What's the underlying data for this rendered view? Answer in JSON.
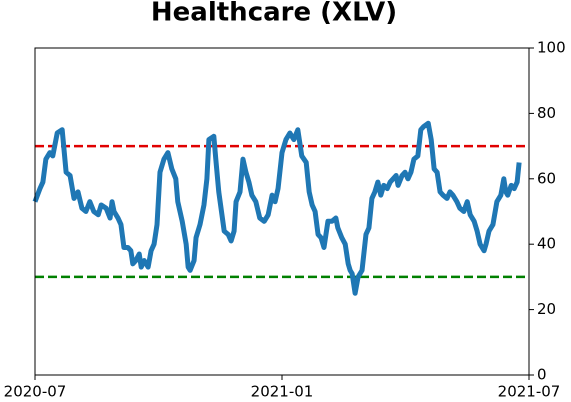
{
  "chart_data": {
    "type": "line",
    "title": "Healthcare (XLV)",
    "x": [
      2020.5,
      2020.51,
      2020.516,
      2020.522,
      2020.53,
      2020.536,
      2020.545,
      2020.555,
      2020.563,
      2020.571,
      2020.579,
      2020.587,
      2020.595,
      2020.603,
      2020.611,
      2020.619,
      2020.628,
      2020.634,
      2020.644,
      2020.652,
      2020.656,
      2020.66,
      2020.668,
      2020.674,
      2020.68,
      2020.688,
      2020.694,
      2020.698,
      2020.704,
      2020.711,
      2020.715,
      2020.721,
      2020.729,
      2020.735,
      2020.741,
      2020.747,
      2020.753,
      2020.761,
      2020.769,
      2020.777,
      2020.785,
      2020.789,
      2020.798,
      2020.806,
      2020.81,
      2020.814,
      2020.822,
      2020.826,
      2020.834,
      2020.842,
      2020.848,
      2020.852,
      2020.862,
      2020.866,
      2020.872,
      2020.883,
      2020.891,
      2020.897,
      2020.903,
      2020.907,
      2020.915,
      2020.921,
      2020.927,
      2020.933,
      2020.939,
      2020.947,
      2020.955,
      2020.964,
      2020.972,
      2020.98,
      2020.986,
      2020.992,
      2021.0,
      2021.008,
      2021.016,
      2021.024,
      2021.032,
      2021.04,
      2021.049,
      2021.055,
      2021.061,
      2021.067,
      2021.073,
      2021.079,
      2021.085,
      2021.093,
      2021.101,
      2021.109,
      2021.113,
      2021.121,
      2021.128,
      2021.134,
      2021.138,
      2021.142,
      2021.148,
      2021.154,
      2021.162,
      2021.17,
      2021.176,
      2021.182,
      2021.188,
      2021.194,
      2021.2,
      2021.206,
      2021.213,
      2021.219,
      2021.225,
      2021.231,
      2021.235,
      2021.243,
      2021.249,
      2021.255,
      2021.261,
      2021.267,
      2021.275,
      2021.281,
      2021.287,
      2021.296,
      2021.302,
      2021.308,
      2021.314,
      2021.32,
      2021.326,
      2021.334,
      2021.34,
      2021.346,
      2021.354,
      2021.36,
      2021.368,
      2021.375,
      2021.381,
      2021.389,
      2021.395,
      2021.401,
      2021.409,
      2021.413,
      2021.419,
      2021.427,
      2021.435,
      2021.443,
      2021.449,
      2021.453,
      2021.457,
      2021.464,
      2021.47,
      2021.476,
      2021.48
    ],
    "series": [
      {
        "color": "#1f77b4",
        "values": [
          53,
          57,
          59,
          66,
          68,
          67,
          74,
          75,
          62,
          61,
          54,
          56,
          51,
          50,
          53,
          50,
          49,
          52,
          51,
          48,
          53,
          50,
          48,
          46,
          39,
          39,
          38,
          34,
          35,
          37,
          33,
          35,
          33,
          38,
          40,
          46,
          62,
          66,
          68,
          63,
          60,
          53,
          47,
          40,
          33,
          32,
          35,
          42,
          46,
          52,
          60,
          72,
          73,
          66,
          56,
          44,
          43,
          41,
          44,
          53,
          56,
          66,
          62,
          59,
          55,
          53,
          48,
          47,
          49,
          55,
          53,
          57,
          68,
          72,
          74,
          72,
          75,
          67,
          65,
          56,
          52,
          50,
          43,
          42,
          39,
          47,
          47,
          48,
          45,
          42,
          40,
          34,
          32,
          31,
          25,
          30,
          32,
          43,
          45,
          54,
          56,
          59,
          55,
          58,
          57,
          59,
          60,
          61,
          58,
          61,
          62,
          60,
          62,
          66,
          67,
          75,
          76,
          77,
          72,
          63,
          62,
          56,
          55,
          54,
          56,
          55,
          53,
          51,
          50,
          53,
          49,
          47,
          44,
          40,
          38,
          40,
          44,
          46,
          53,
          55,
          60,
          56,
          55,
          58,
          57,
          59,
          65
        ]
      }
    ],
    "xlim": [
      2020.5,
      2021.5
    ],
    "xticks": [
      {
        "value": 2020.5,
        "label": "2020-07"
      },
      {
        "value": 2021.0,
        "label": "2021-01"
      },
      {
        "value": 2021.5,
        "label": "2021-07"
      }
    ],
    "ylim": [
      0,
      100
    ],
    "yticks": [
      0,
      20,
      40,
      60,
      80,
      100
    ],
    "y_axis_side": "right",
    "reference_lines": [
      {
        "y": 70,
        "color": "#e00000",
        "style": "dashed"
      },
      {
        "y": 30,
        "color": "#008000",
        "style": "dashed"
      }
    ]
  }
}
